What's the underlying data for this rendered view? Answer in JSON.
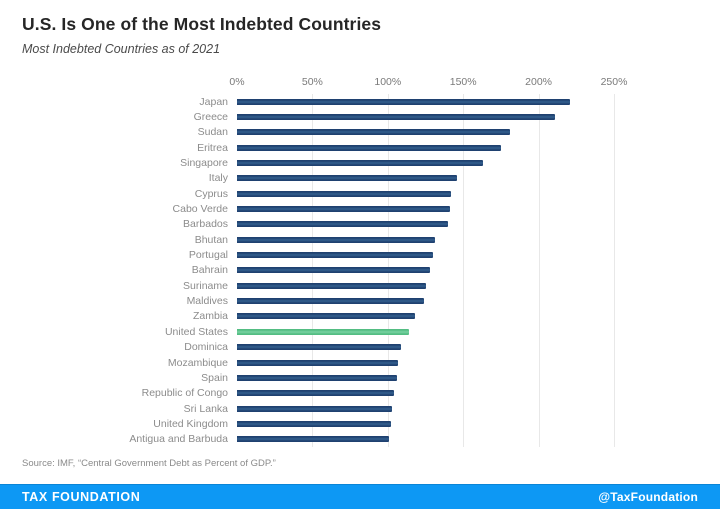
{
  "header": {
    "title": "U.S. Is One of the Most Indebted Countries",
    "subtitle": "Most Indebted Countries as of 2021"
  },
  "chart_data": {
    "type": "bar",
    "orientation": "horizontal",
    "title": "U.S. Is One of the Most Indebted Countries",
    "subtitle": "Most Indebted Countries as of 2021",
    "unit": "% of GDP",
    "xlim": [
      0,
      250
    ],
    "x_ticks": [
      "0%",
      "50%",
      "100%",
      "150%",
      "200%",
      "250%"
    ],
    "grid": "vertical",
    "categories": [
      "Japan",
      "Greece",
      "Sudan",
      "Eritrea",
      "Singapore",
      "Italy",
      "Cyprus",
      "Cabo Verde",
      "Barbados",
      "Bhutan",
      "Portugal",
      "Bahrain",
      "Suriname",
      "Maldives",
      "Zambia",
      "United States",
      "Dominica",
      "Mozambique",
      "Spain",
      "Republic of Congo",
      "Sri Lanka",
      "United Kingdom",
      "Antigua and Barbuda"
    ],
    "values": [
      221,
      211,
      181,
      175,
      163,
      146,
      142,
      141,
      140,
      131,
      130,
      128,
      125,
      124,
      118,
      114,
      109,
      107,
      106,
      104,
      103,
      102,
      101
    ],
    "highlight_category": "United States",
    "bar_color": "#1f4170",
    "bar_color_light": "#33608f",
    "highlight_color": "#54bd83",
    "highlight_color_light": "#79d2a2",
    "gridline_color": "#e8e8e8"
  },
  "source_note": "Source: IMF, “Central Government Debt as Percent of GDP.”",
  "footer": {
    "brand": "TAX FOUNDATION",
    "handle": "@TaxFoundation",
    "bg_color": "#0d98f4"
  }
}
